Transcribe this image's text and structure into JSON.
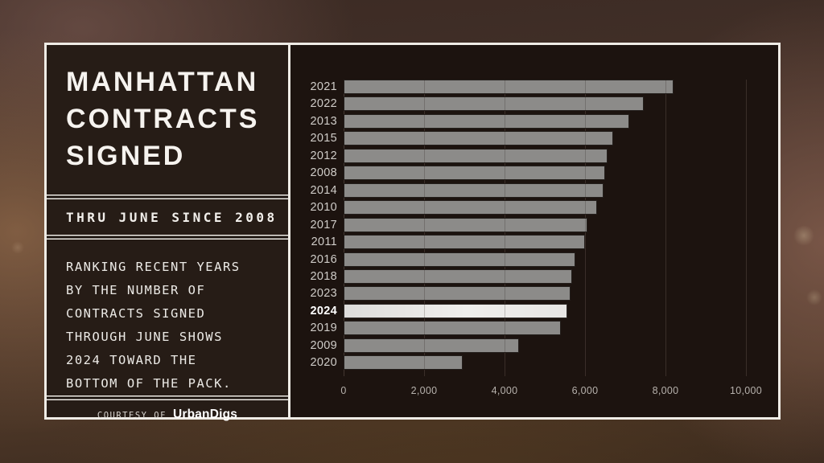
{
  "panel": {
    "title_lines": [
      "MANHATTAN",
      "CONTRACTS",
      "SIGNED"
    ],
    "subtitle": "THRU JUNE SINCE 2008",
    "description_lines": [
      "RANKING RECENT YEARS",
      "BY THE NUMBER OF",
      "CONTRACTS SIGNED",
      "THROUGH JUNE SHOWS",
      "2024 TOWARD THE",
      "BOTTOM OF THE PACK."
    ],
    "courtesy_prefix": "COURTESY OF",
    "courtesy_brand": "UrbanDigs"
  },
  "chart_data": {
    "type": "bar",
    "orientation": "horizontal",
    "title": "Manhattan contracts signed through June, ranked by year",
    "categories": [
      "2021",
      "2022",
      "2013",
      "2015",
      "2012",
      "2008",
      "2014",
      "2010",
      "2017",
      "2011",
      "2016",
      "2018",
      "2023",
      "2024",
      "2019",
      "2009",
      "2020"
    ],
    "values": [
      8200,
      7450,
      7100,
      6700,
      6550,
      6500,
      6450,
      6300,
      6050,
      6000,
      5750,
      5670,
      5640,
      5550,
      5400,
      4350,
      2950
    ],
    "highlight_category": "2024",
    "xlim": [
      0,
      10000
    ],
    "x_tick_values": [
      0,
      2000,
      4000,
      6000,
      8000,
      10000
    ],
    "x_tick_labels": [
      "0",
      "2,000",
      "4,000",
      "6,000",
      "8,000",
      "10,000"
    ],
    "grid": true,
    "legend": false,
    "bar_color": "#8c8b89",
    "highlight_color": "#efeeec",
    "background_color": "#1c130f",
    "frame_border_color": "#efece6"
  }
}
